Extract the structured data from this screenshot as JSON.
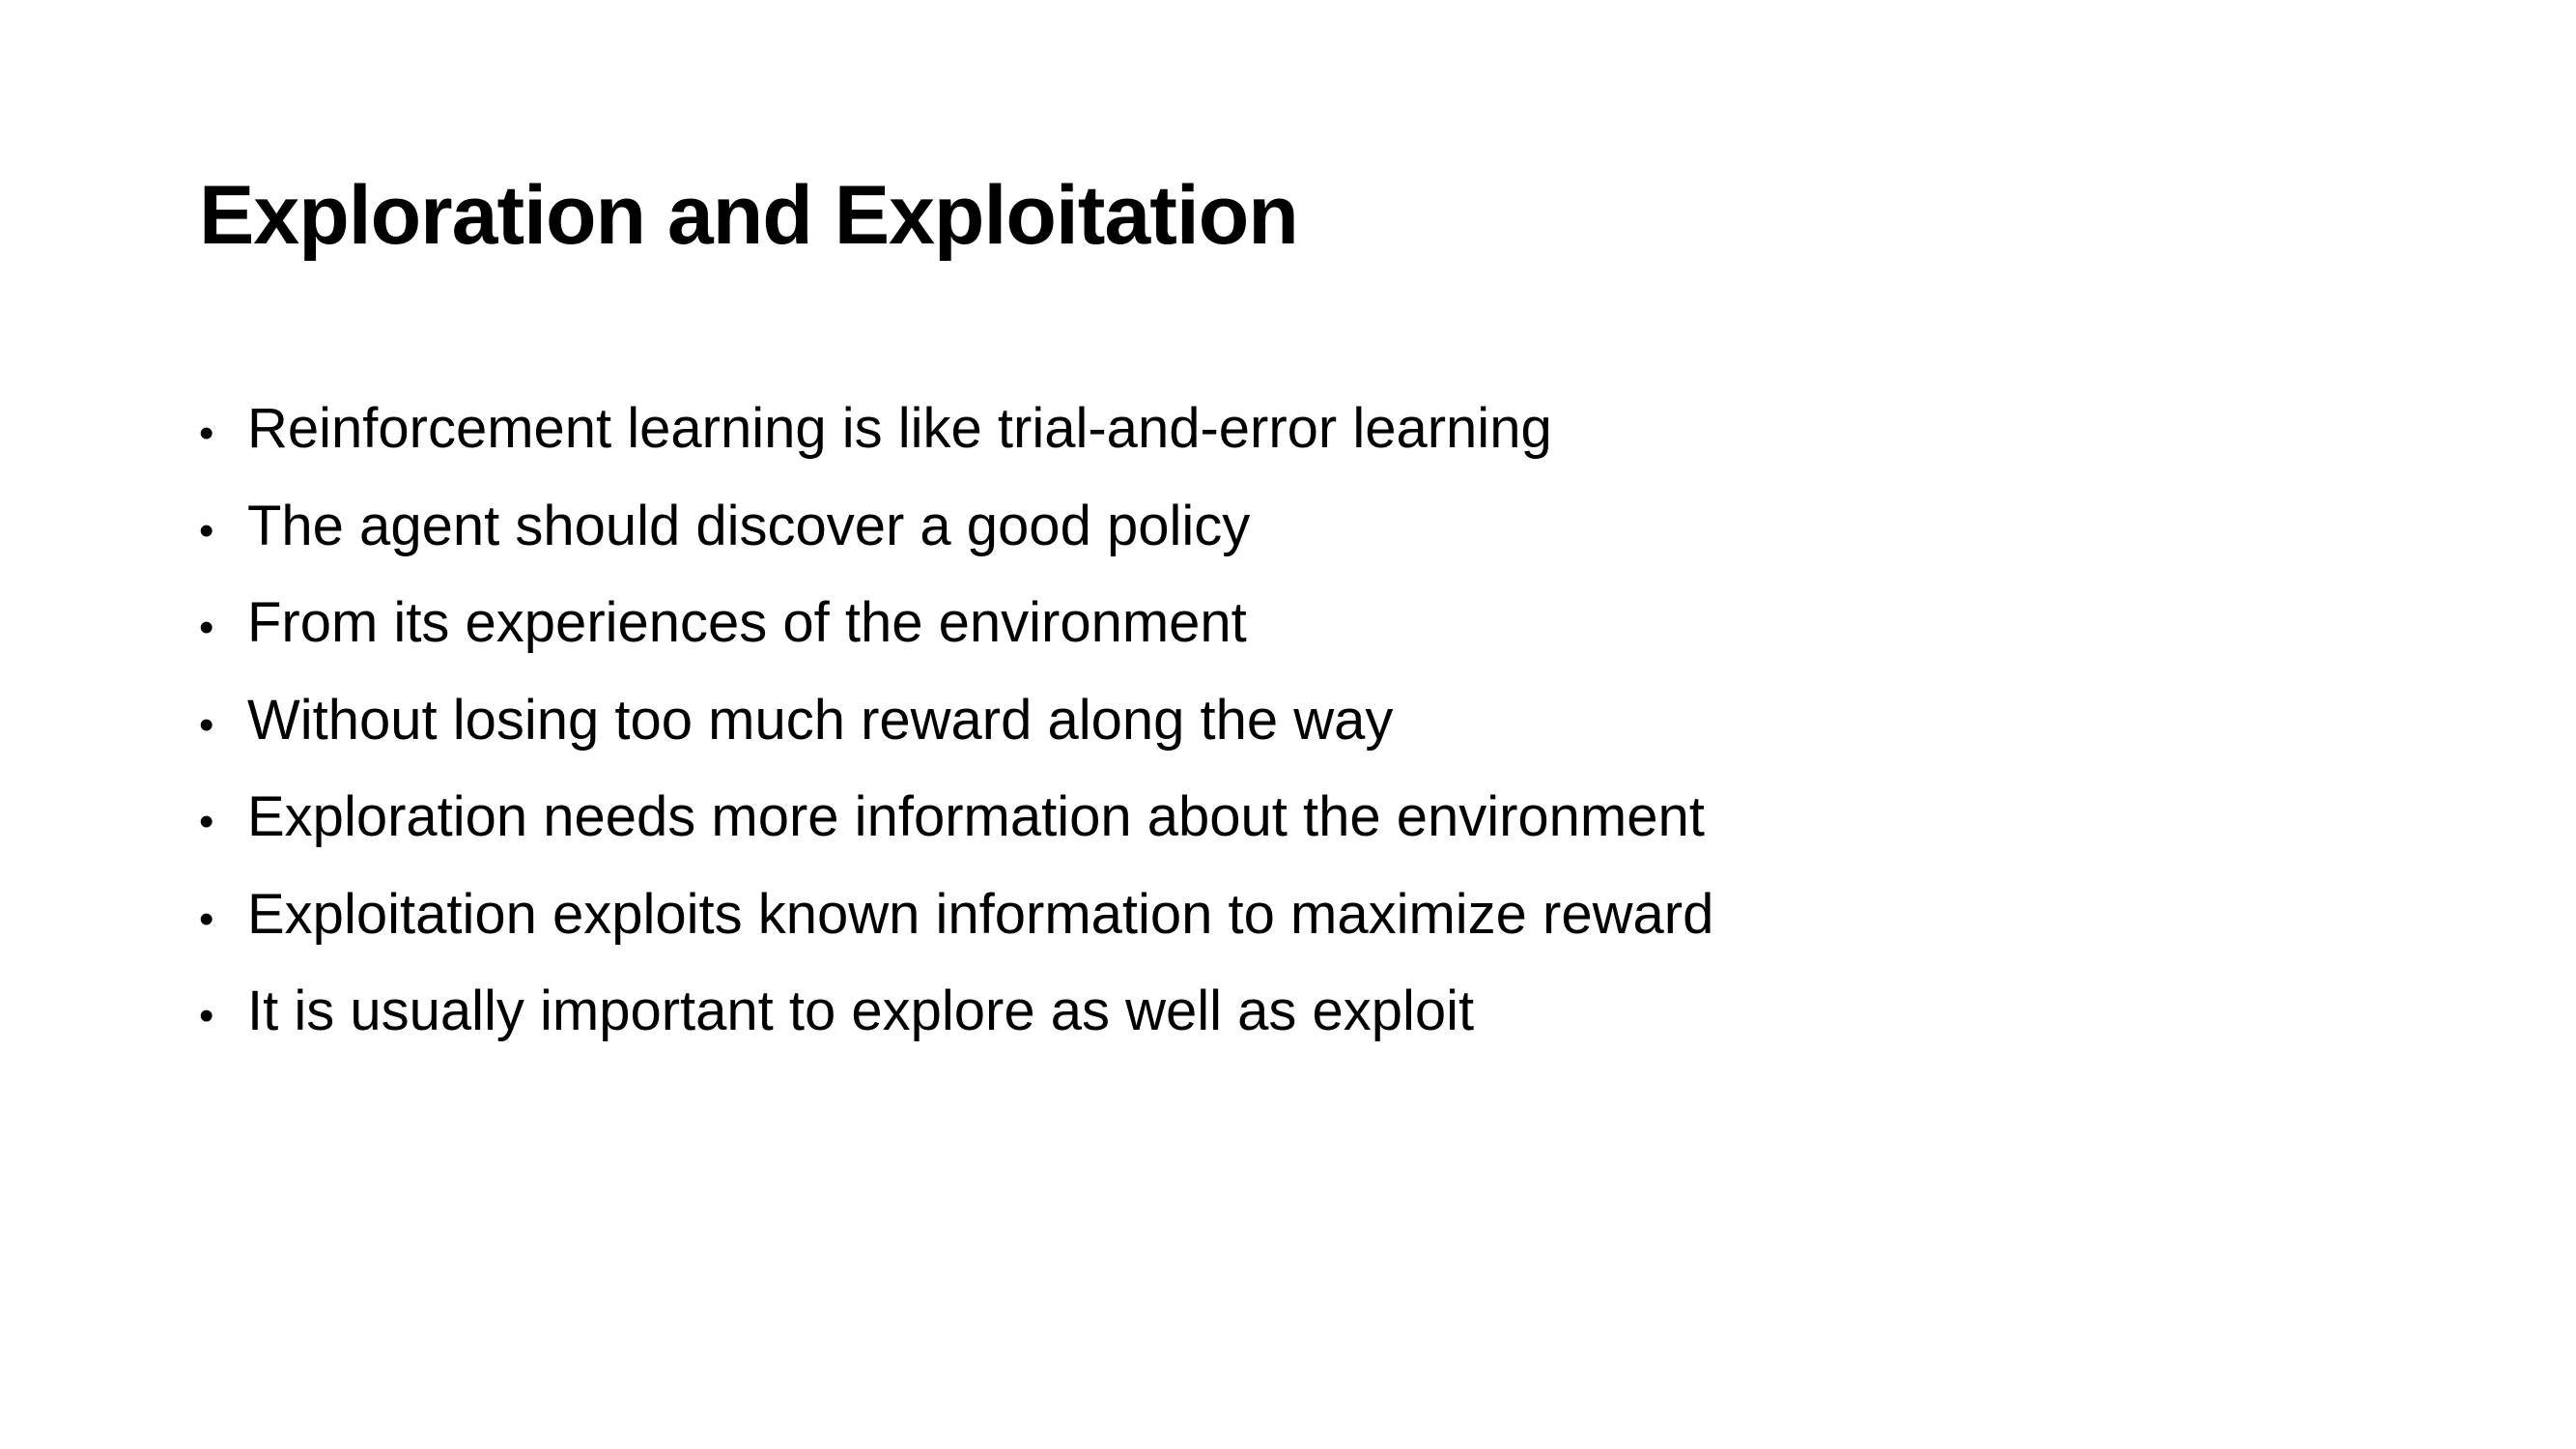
{
  "slide": {
    "title": "Exploration and Exploitation",
    "bullet_symbol": "•",
    "bullets": [
      "Reinforcement learning is like trial-and-error learning",
      "The agent should discover a good policy",
      "From its experiences of the environment",
      "Without losing too much reward along the way",
      "Exploration needs more information about the environment",
      "Exploitation exploits known information to maximize reward",
      "It is usually important to explore as well as exploit"
    ]
  }
}
